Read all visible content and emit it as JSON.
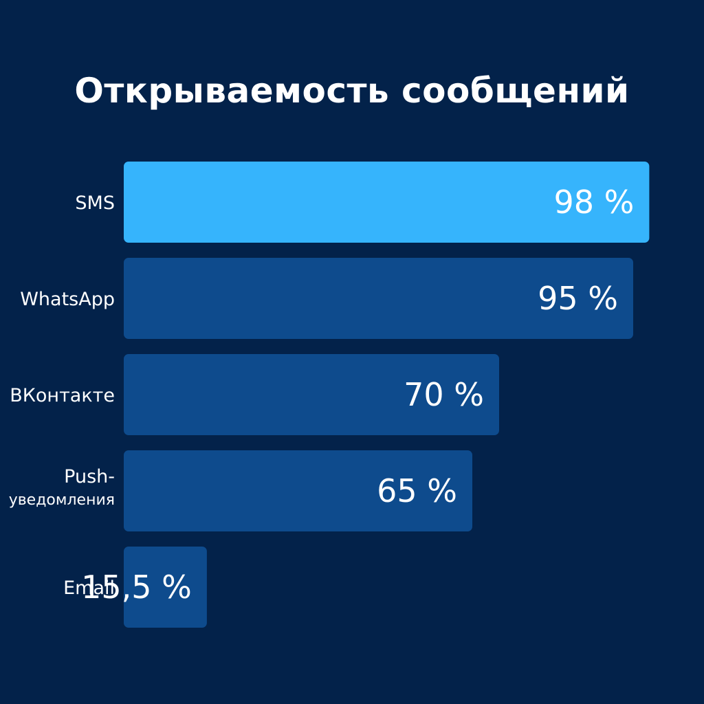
{
  "chart_data": {
    "type": "bar",
    "orientation": "horizontal",
    "title": "Открываемость сообщений",
    "categories": [
      "SMS",
      "WhatsApp",
      "ВКонтакте",
      "Push-уведомления",
      "Email"
    ],
    "category_lines": [
      [
        "SMS"
      ],
      [
        "WhatsApp"
      ],
      [
        "ВКонтакте"
      ],
      [
        "Push-",
        "уведомления"
      ],
      [
        "Email"
      ]
    ],
    "values": [
      98,
      95,
      70,
      65,
      15.5
    ],
    "value_labels": [
      "98 %",
      "95 %",
      "70 %",
      "65 %",
      "15,5 %"
    ],
    "xlim": [
      0,
      100
    ],
    "grid": false,
    "legend": "none",
    "highlight_index": 0,
    "colors": {
      "background": "#03224a",
      "highlight_bar": "#36b4fc",
      "bar": "#0e4b8d",
      "text": "#ffffff"
    }
  }
}
